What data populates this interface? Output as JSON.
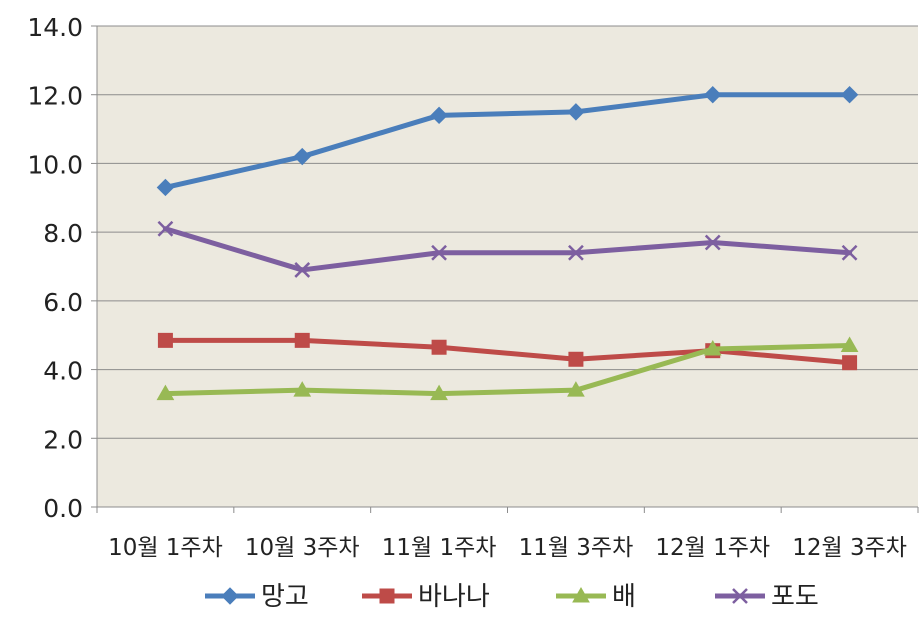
{
  "chart_data": {
    "type": "line",
    "title": "",
    "xlabel": "",
    "ylabel": "",
    "categories": [
      "10월 1주차",
      "10월 3주차",
      "11월 1주차",
      "11월 3주차",
      "12월 1주차",
      "12월 3주차"
    ],
    "ylim": [
      0,
      14
    ],
    "yticks": [
      "0.0",
      "2.0",
      "4.0",
      "6.0",
      "8.0",
      "10.0",
      "12.0",
      "14.0"
    ],
    "grid": true,
    "legend_position": "bottom",
    "plot_background": "#ece9df",
    "series": [
      {
        "name": "망고",
        "color": "#4a7ebb",
        "marker": "diamond",
        "values": [
          9.3,
          10.2,
          11.4,
          11.5,
          12.0,
          12.0
        ]
      },
      {
        "name": "바나나",
        "color": "#be4b48",
        "marker": "square",
        "values": [
          4.85,
          4.85,
          4.65,
          4.3,
          4.55,
          4.2
        ]
      },
      {
        "name": "배",
        "color": "#98b954",
        "marker": "triangle",
        "values": [
          3.3,
          3.4,
          3.3,
          3.4,
          4.6,
          4.7
        ]
      },
      {
        "name": "포도",
        "color": "#7d5fa0",
        "marker": "x",
        "values": [
          8.1,
          6.9,
          7.4,
          7.4,
          7.7,
          7.4
        ]
      }
    ]
  }
}
